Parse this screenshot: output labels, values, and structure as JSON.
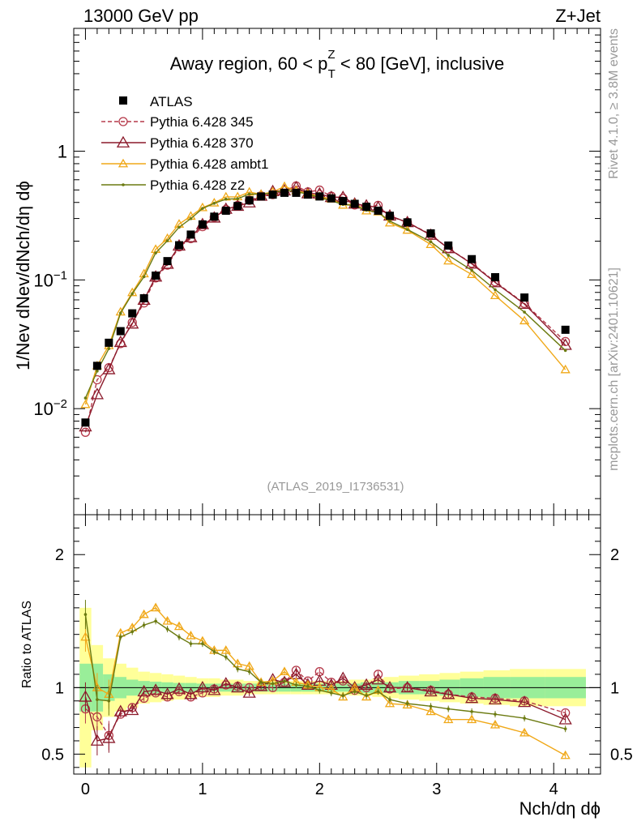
{
  "header": {
    "left": "13000 GeV pp",
    "right": "Z+Jet"
  },
  "side_labels": {
    "rivet": "Rivet 4.1.0, ≥ 3.8M events",
    "mcplots": "mcplots.cern.ch [arXiv:2401.10621]"
  },
  "chart_data": {
    "type": "line",
    "title": "Away region, 60 < pTZ < 80 [GeV], inclusive",
    "title_parts": {
      "a": "Away region, 60 < p",
      "sup": "Z",
      "sub": "T",
      "b": " < 80 [GeV], inclusive"
    },
    "watermark": "(ATLAS_2019_I1736531)",
    "xlabel": "Nch/dη dϕ",
    "ylabel": "1/Nev dNev/dNch/dη dϕ",
    "ratio_ylabel": "Ratio to ATLAS",
    "xlim": [
      -0.1,
      4.4
    ],
    "ylim": [
      0.0015,
      9
    ],
    "yscale": "log",
    "ratio_ylim": [
      0.35,
      2.3
    ],
    "x_ticks": [
      "0",
      "1",
      "2",
      "3",
      "4"
    ],
    "y_ticks": [
      {
        "value": 1,
        "base": "1",
        "exp": ""
      },
      {
        "value": 0.1,
        "base": "10",
        "exp": "−1"
      },
      {
        "value": 0.01,
        "base": "10",
        "exp": "−2"
      }
    ],
    "ratio_ticks": [
      "0.5",
      "1",
      "2"
    ],
    "x": [
      0.0,
      0.1,
      0.2,
      0.3,
      0.4,
      0.5,
      0.6,
      0.7,
      0.8,
      0.9,
      1.0,
      1.1,
      1.2,
      1.3,
      1.4,
      1.5,
      1.6,
      1.7,
      1.8,
      1.9,
      2.0,
      2.1,
      2.2,
      2.3,
      2.4,
      2.5,
      2.6,
      2.75,
      2.95,
      3.1,
      3.3,
      3.5,
      3.75,
      4.1
    ],
    "data": {
      "name": "ATLAS",
      "values": [
        0.0078,
        0.0215,
        0.0325,
        0.04,
        0.055,
        0.072,
        0.108,
        0.14,
        0.186,
        0.225,
        0.27,
        0.31,
        0.345,
        0.375,
        0.415,
        0.445,
        0.46,
        0.475,
        0.475,
        0.46,
        0.445,
        0.43,
        0.41,
        0.39,
        0.37,
        0.345,
        0.315,
        0.28,
        0.23,
        0.185,
        0.145,
        0.105,
        0.073,
        0.041
      ]
    },
    "series": [
      {
        "name": "Pythia 6.428 345",
        "color": "#b5394a",
        "dash": "dashed",
        "marker": "circle",
        "ratio": [
          0.84,
          0.78,
          0.64,
          0.8,
          0.85,
          0.92,
          0.96,
          0.93,
          0.97,
          0.93,
          0.96,
          0.99,
          1.02,
          1.01,
          1.0,
          1.01,
          1.0,
          1.04,
          1.13,
          1.05,
          1.12,
          1.04,
          1.05,
          0.98,
          1.0,
          1.1,
          0.99,
          1.0,
          0.98,
          0.95,
          0.93,
          0.92,
          0.9,
          0.81
        ]
      },
      {
        "name": "Pythia 6.428 370",
        "color": "#8b1a2b",
        "dash": "solid",
        "marker": "triangle",
        "ratio": [
          0.93,
          0.6,
          0.62,
          0.82,
          0.83,
          0.97,
          0.98,
          0.95,
          0.99,
          0.95,
          1.0,
          0.98,
          1.03,
          1.0,
          0.96,
          1.01,
          1.06,
          1.04,
          1.1,
          1.02,
          1.05,
          1.02,
          1.07,
          1.0,
          1.02,
          1.06,
          1.0,
          1.0,
          0.97,
          0.95,
          0.92,
          0.91,
          0.89,
          0.76
        ]
      },
      {
        "name": "Pythia 6.428 ambt1",
        "color": "#f0a818",
        "dash": "solid",
        "marker": "triangle-open",
        "ratio": [
          1.38,
          1.0,
          0.95,
          1.41,
          1.45,
          1.55,
          1.6,
          1.5,
          1.46,
          1.39,
          1.35,
          1.28,
          1.28,
          1.18,
          1.16,
          1.04,
          1.05,
          1.12,
          1.04,
          1.02,
          1.0,
          0.99,
          0.93,
          1.0,
          0.93,
          0.98,
          0.88,
          0.87,
          0.82,
          0.76,
          0.76,
          0.72,
          0.66,
          0.49
        ]
      },
      {
        "name": "Pythia 6.428 z2",
        "color": "#6b7a10",
        "dash": "solid",
        "marker": "dot",
        "ratio": [
          1.55,
          0.91,
          0.9,
          1.38,
          1.42,
          1.47,
          1.5,
          1.44,
          1.38,
          1.33,
          1.33,
          1.27,
          1.23,
          1.14,
          1.12,
          1.04,
          1.03,
          1.05,
          1.02,
          1.01,
          0.98,
          0.96,
          0.94,
          0.97,
          0.94,
          0.97,
          0.91,
          0.88,
          0.86,
          0.84,
          0.82,
          0.8,
          0.77,
          0.69
        ]
      }
    ],
    "bands": {
      "inner": [
        0.18,
        0.18,
        0.1,
        0.08,
        0.06,
        0.05,
        0.045,
        0.04,
        0.035,
        0.035,
        0.03,
        0.03,
        0.03,
        0.03,
        0.03,
        0.03,
        0.03,
        0.03,
        0.03,
        0.03,
        0.03,
        0.03,
        0.03,
        0.03,
        0.04,
        0.04,
        0.04,
        0.05,
        0.05,
        0.06,
        0.07,
        0.08,
        0.08,
        0.08
      ],
      "outer": [
        0.6,
        0.32,
        0.22,
        0.18,
        0.15,
        0.12,
        0.11,
        0.1,
        0.09,
        0.08,
        0.07,
        0.07,
        0.06,
        0.06,
        0.05,
        0.05,
        0.05,
        0.05,
        0.05,
        0.05,
        0.05,
        0.05,
        0.05,
        0.06,
        0.06,
        0.07,
        0.08,
        0.09,
        0.1,
        0.11,
        0.12,
        0.13,
        0.14,
        0.14
      ]
    }
  }
}
